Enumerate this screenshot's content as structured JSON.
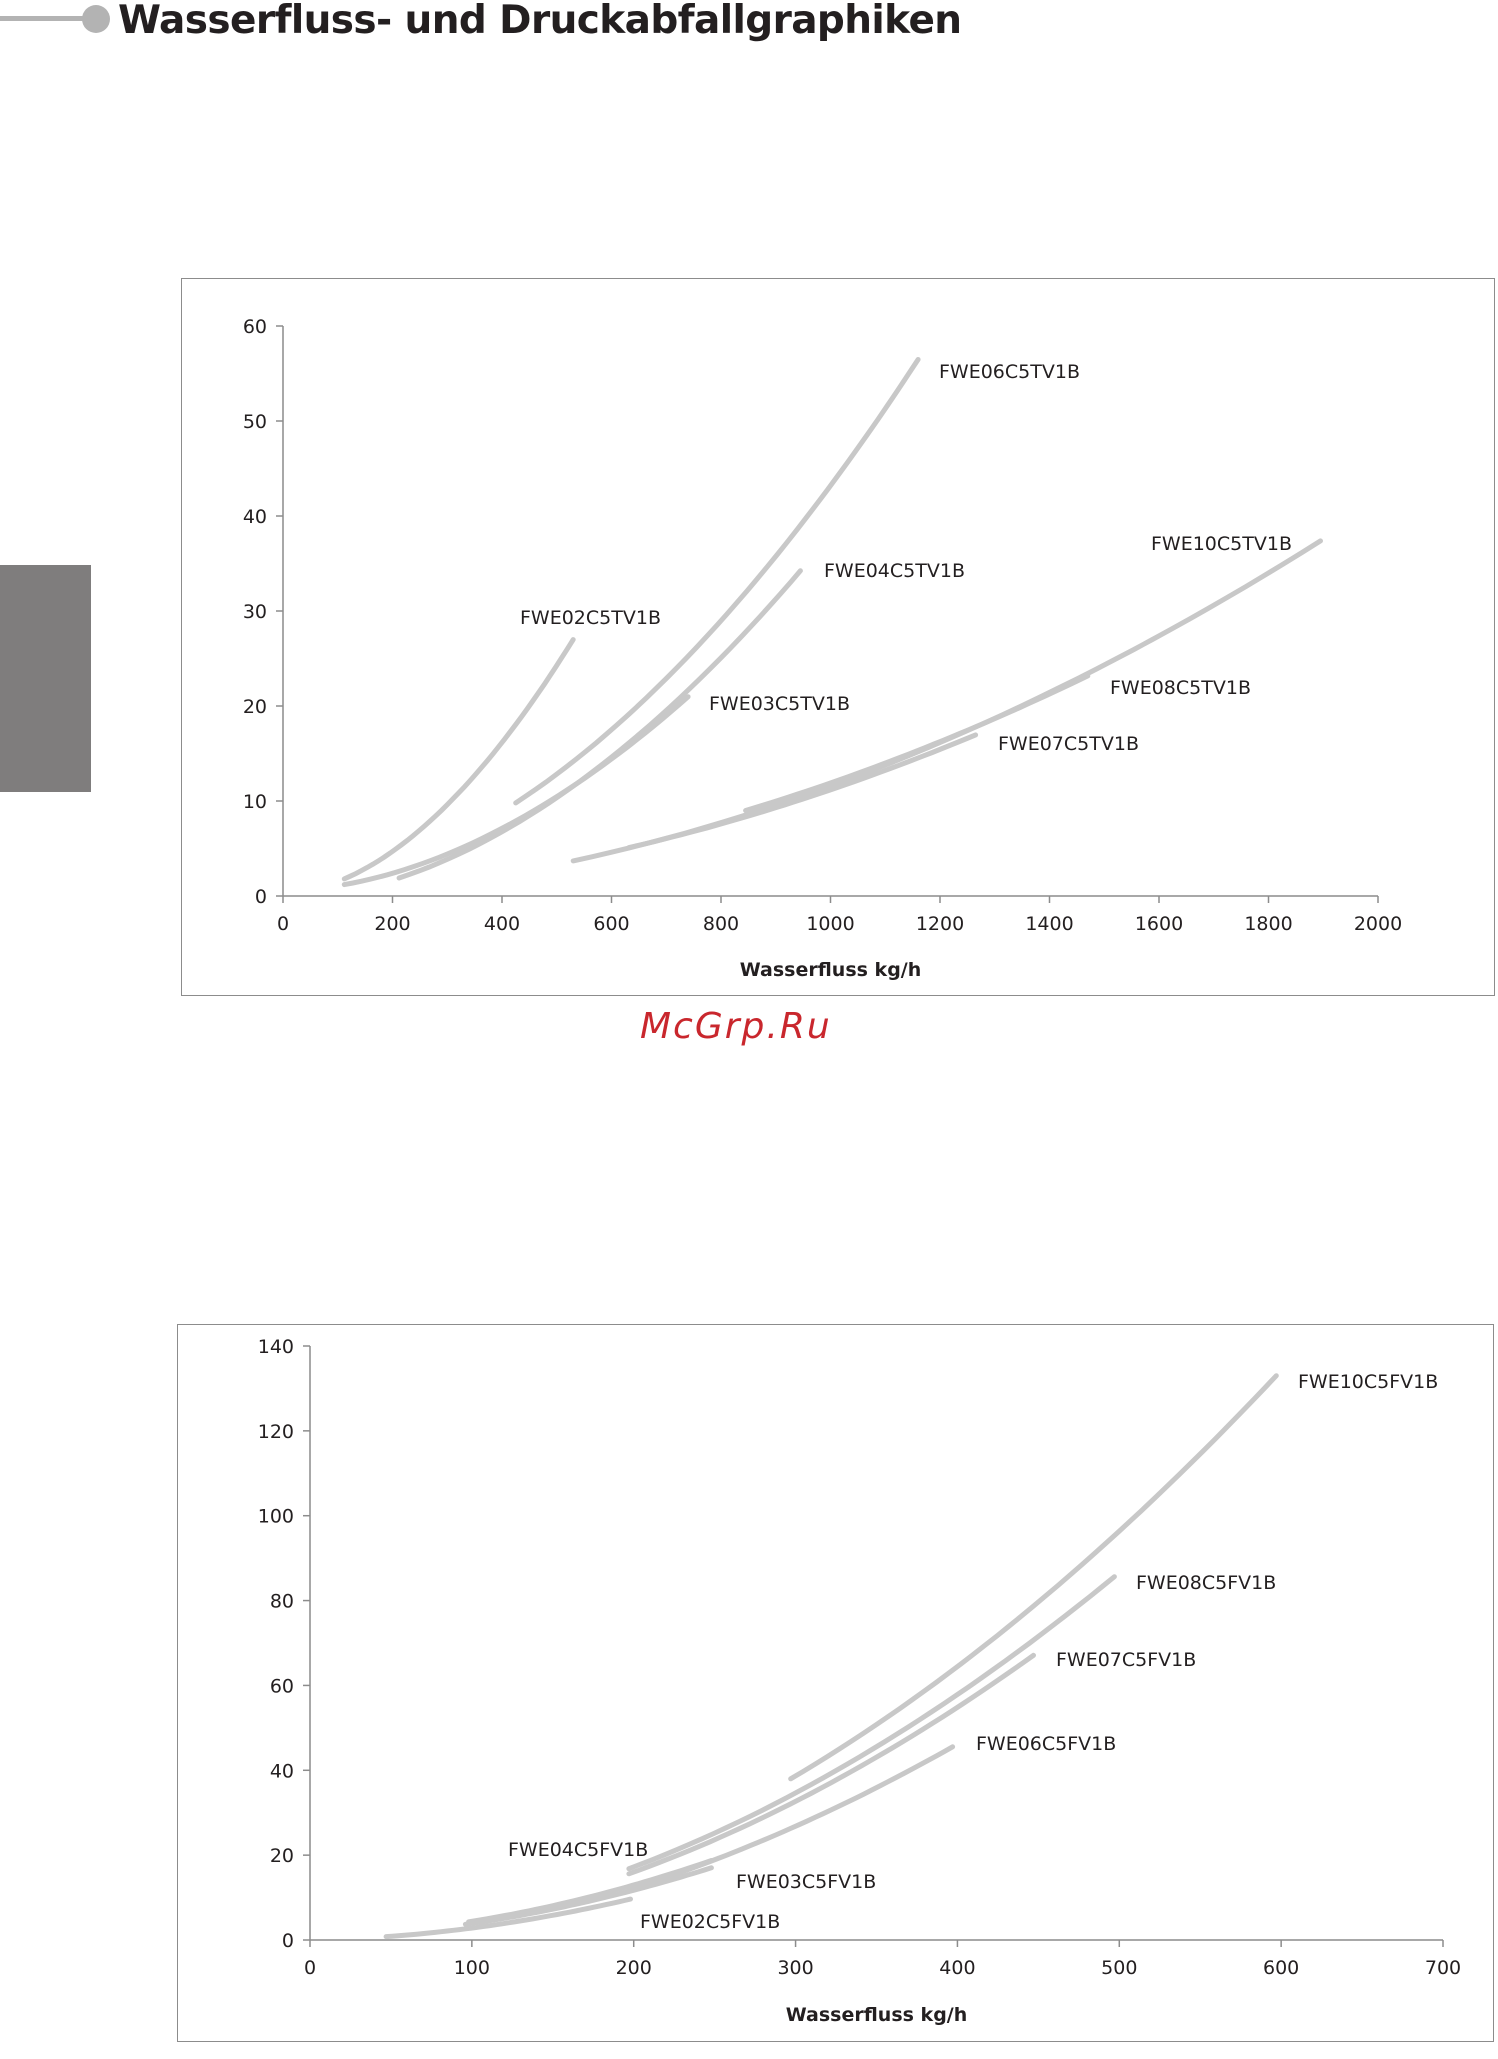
{
  "page": {
    "title": "Wasserfluss- und Druckabfallgraphiken",
    "watermark": "McGrp.Ru",
    "colors": {
      "curve": "#c8c8c8",
      "side_tab": "#7f7d7d",
      "header_accent": "#b3b3b3",
      "watermark": "#c9272d"
    }
  },
  "chart_data": [
    {
      "type": "line",
      "title": "",
      "xlabel": "Wasserfluss kg/h",
      "ylabel": "",
      "xlim": [
        0,
        2000
      ],
      "ylim": [
        0,
        60
      ],
      "x_ticks": [
        "0",
        "200",
        "400",
        "600",
        "800",
        "1000",
        "1200",
        "1400",
        "1600",
        "1800",
        "2000"
      ],
      "y_ticks": [
        "0",
        "10",
        "20",
        "30",
        "40",
        "50",
        "60"
      ],
      "grid": false,
      "legend": "inline labels at curve ends",
      "series": [
        {
          "name": "FWE02C5TV1B",
          "exponent": 1.85,
          "points": [
            [
              112,
              1.8
            ],
            [
              530,
              26.7
            ]
          ]
        },
        {
          "name": "FWE03C5TV1B",
          "exponent": 1.85,
          "points": [
            [
              112,
              1.2
            ],
            [
              740,
              20.4
            ]
          ]
        },
        {
          "name": "FWE04C5TV1B",
          "exponent": 1.85,
          "points": [
            [
              212,
              1.9
            ],
            [
              945,
              34.5
            ]
          ]
        },
        {
          "name": "FWE06C5TV1B",
          "exponent": 1.85,
          "points": [
            [
              425,
              9.8
            ],
            [
              1160,
              55.3
            ]
          ]
        },
        {
          "name": "FWE07C5TV1B",
          "exponent": 1.85,
          "points": [
            [
              632,
              5.1
            ],
            [
              1265,
              16.4
            ]
          ]
        },
        {
          "name": "FWE08C5TV1B",
          "exponent": 1.85,
          "points": [
            [
              845,
              9.0
            ],
            [
              1470,
              22.1
            ]
          ]
        },
        {
          "name": "FWE10C5TV1B",
          "exponent": 1.85,
          "points": [
            [
              530,
              3.7
            ],
            [
              1895,
              37.2
            ]
          ]
        }
      ]
    },
    {
      "type": "line",
      "title": "",
      "xlabel": "Wasserfluss kg/h",
      "ylabel": "",
      "xlim": [
        0,
        700
      ],
      "ylim": [
        0,
        140
      ],
      "x_ticks": [
        "0",
        "100",
        "200",
        "300",
        "400",
        "500",
        "600",
        "700"
      ],
      "y_ticks": [
        "0",
        "20",
        "40",
        "60",
        "80",
        "100",
        "120",
        "140"
      ],
      "grid": false,
      "legend": "inline labels at curve ends",
      "series": [
        {
          "name": "FWE02C5FV1B",
          "exponent": 1.85,
          "points": [
            [
              47,
              0.8
            ],
            [
              198,
              9.5
            ]
          ]
        },
        {
          "name": "FWE03C5FV1B",
          "exponent": 1.85,
          "points": [
            [
              96,
              3.7
            ],
            [
              248,
              16.1
            ]
          ]
        },
        {
          "name": "FWE04C5FV1B",
          "exponent": 1.85,
          "points": [
            [
              98,
              4.3
            ],
            [
              248,
              17.6
            ]
          ]
        },
        {
          "name": "FWE06C5FV1B",
          "exponent": 1.85,
          "points": [
            [
              197,
              11.9
            ],
            [
              397,
              46.3
            ]
          ]
        },
        {
          "name": "FWE07C5FV1B",
          "exponent": 1.85,
          "points": [
            [
              197,
              15.6
            ],
            [
              447,
              66.0
            ]
          ]
        },
        {
          "name": "FWE08C5FV1B",
          "exponent": 1.85,
          "points": [
            [
              197,
              16.8
            ],
            [
              497,
              84.0
            ]
          ]
        },
        {
          "name": "FWE10C5FV1B",
          "exponent": 1.85,
          "points": [
            [
              297,
              38.0
            ],
            [
              597,
              131.0
            ]
          ]
        }
      ]
    }
  ]
}
